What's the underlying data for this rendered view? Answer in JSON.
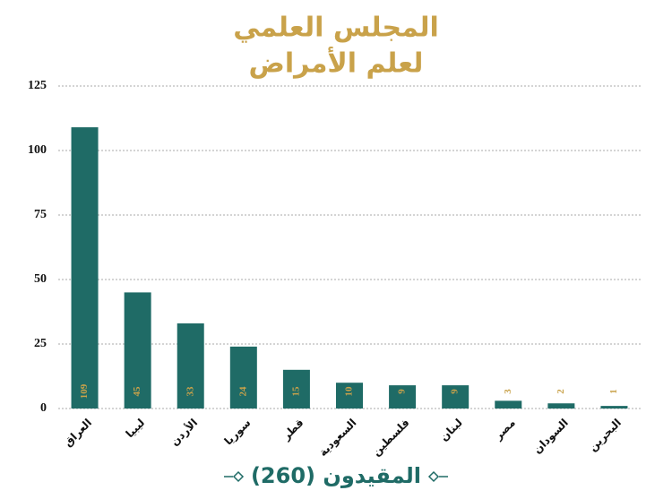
{
  "chart_data": {
    "type": "bar",
    "title": [
      "المجلس العلمي",
      "لعلم الأمراض"
    ],
    "x_label": "المقيدون (260)",
    "categories": [
      "العراق",
      "ليبيا",
      "الأردن",
      "سوريا",
      "قطر",
      "السعودية",
      "فلسطين",
      "لبنان",
      "مصر",
      "السودان",
      "البحرين"
    ],
    "values": [
      109,
      45,
      33,
      24,
      15,
      10,
      9,
      9,
      3,
      2,
      1
    ],
    "color": "#1f6b66",
    "ylim": [
      0,
      125
    ],
    "yticks": [
      0,
      25,
      50,
      75,
      100,
      125
    ],
    "grid": true
  }
}
